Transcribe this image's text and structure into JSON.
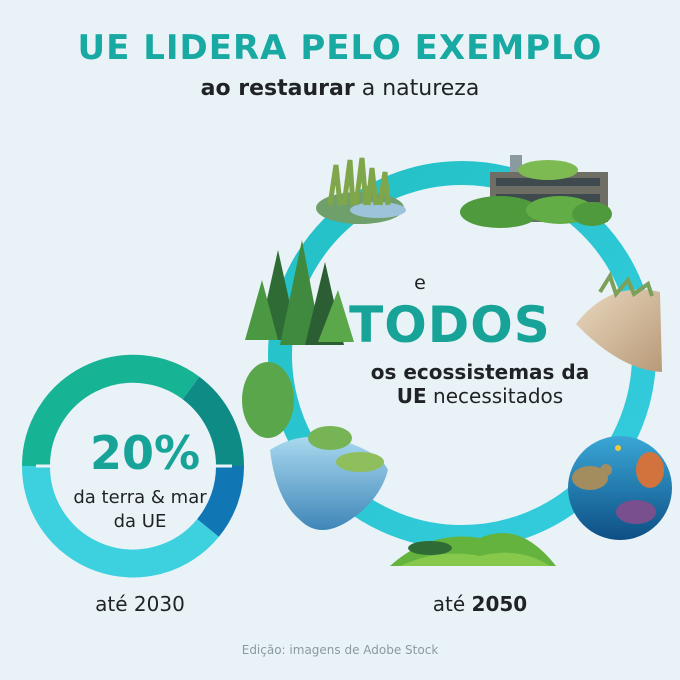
{
  "header": {
    "title": "UE LIDERA PELO EXEMPLO",
    "subtitle_bold": "ao restaurar",
    "subtitle_rest": " a natureza"
  },
  "big_ring": {
    "connector": "e",
    "headline": "TODOS",
    "line1": "os ecossistemas da",
    "line2_bold": "UE",
    "line2_rest": " necessitados",
    "year_prefix": "até ",
    "year": "2050"
  },
  "small_ring": {
    "percentage": "20%",
    "line1": "da terra & mar",
    "line2": "da UE",
    "year_label": "até 2030"
  },
  "footer": {
    "credit": "Edição: imagens de Adobe Stock"
  },
  "colors": {
    "teal": "#17a9a2",
    "cyan": "#3dd0df",
    "green": "#16b394",
    "dark_teal": "#0f8b86",
    "blue": "#1176b4"
  }
}
